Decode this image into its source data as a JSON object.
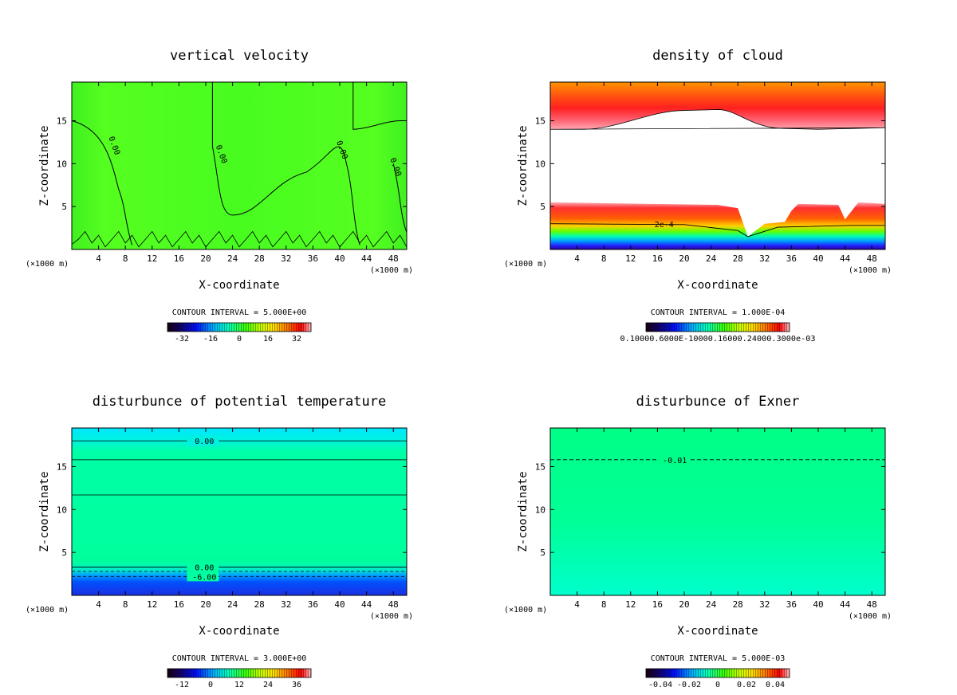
{
  "chart_data": [
    {
      "id": "p1",
      "type": "heatmap",
      "title": "vertical velocity",
      "xlabel": "X-coordinate",
      "ylabel": "Z-coordinate",
      "x_unit": "(×1000 m)",
      "xlim": [
        0,
        50
      ],
      "ylim": [
        0,
        19.5
      ],
      "xticks": [
        4,
        8,
        12,
        16,
        20,
        24,
        28,
        32,
        36,
        40,
        44,
        48
      ],
      "yticks": [
        5,
        10,
        15
      ],
      "contour_labels": [
        "0.00",
        "0.00",
        "0.00",
        "0.00"
      ],
      "contour_interval": "CONTOUR INTERVAL = 5.000E+00",
      "colorbar_ticks": [
        "-32",
        "-16",
        "0",
        "16",
        "32"
      ],
      "colorbar_range": [
        -40,
        40
      ]
    },
    {
      "id": "p2",
      "type": "heatmap",
      "title": "density of cloud",
      "xlabel": "X-coordinate",
      "ylabel": "Z-coordinate",
      "x_unit": "(×1000 m)",
      "xlim": [
        0,
        50
      ],
      "ylim": [
        0,
        19.5
      ],
      "xticks": [
        4,
        8,
        12,
        16,
        20,
        24,
        28,
        32,
        36,
        40,
        44,
        48
      ],
      "yticks": [
        5,
        10,
        15
      ],
      "contour_labels": [
        "2e-4"
      ],
      "contour_interval": "CONTOUR INTERVAL = 1.000E-04",
      "colorbar_label": "0.10000.6000E-10000.16000.24000.3000e-03"
    },
    {
      "id": "p3",
      "type": "heatmap",
      "title": "disturbunce of potential temperature",
      "xlabel": "X-coordinate",
      "ylabel": "Z-coordinate",
      "x_unit": "(×1000 m)",
      "xlim": [
        0,
        50
      ],
      "ylim": [
        0,
        19.5
      ],
      "xticks": [
        4,
        8,
        12,
        16,
        20,
        24,
        28,
        32,
        36,
        40,
        44,
        48
      ],
      "yticks": [
        5,
        10,
        15
      ],
      "contour_labels": [
        "0.00",
        "0.00",
        "-6.00"
      ],
      "contour_levels_z": [
        18.0,
        15.8,
        11.7,
        3.3,
        2.8,
        2.2
      ],
      "contour_interval": "CONTOUR INTERVAL = 3.000E+00",
      "colorbar_ticks": [
        "-12",
        "0",
        "12",
        "24",
        "36"
      ],
      "colorbar_range": [
        -18,
        42
      ]
    },
    {
      "id": "p4",
      "type": "heatmap",
      "title": "disturbunce of Exner",
      "xlabel": "X-coordinate",
      "ylabel": "Z-coordinate",
      "x_unit": "(×1000 m)",
      "xlim": [
        0,
        50
      ],
      "ylim": [
        0,
        19.5
      ],
      "xticks": [
        4,
        8,
        12,
        16,
        20,
        24,
        28,
        32,
        36,
        40,
        44,
        48
      ],
      "yticks": [
        5,
        10,
        15
      ],
      "contour_labels": [
        "-0.01"
      ],
      "contour_levels_z": [
        15.8
      ],
      "contour_interval": "CONTOUR INTERVAL = 5.000E-03",
      "colorbar_ticks": [
        "-0.04",
        "-0.02",
        "0",
        "0.02",
        "0.04"
      ],
      "colorbar_range": [
        -0.05,
        0.05
      ]
    }
  ]
}
